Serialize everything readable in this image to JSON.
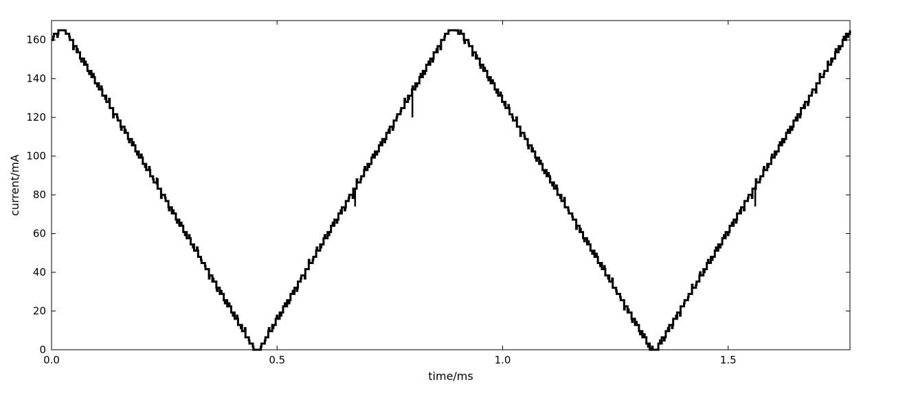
{
  "chart_data": {
    "type": "line",
    "title": "",
    "xlabel": "time/ms",
    "ylabel": "current/mA",
    "xlim": [
      0.0,
      1.77
    ],
    "ylim": [
      0,
      170
    ],
    "x_ticks": [
      0.0,
      0.5,
      1.0,
      1.5
    ],
    "x_tick_labels": [
      "0.0",
      "0.5",
      "1.0",
      "1.5"
    ],
    "y_ticks": [
      0,
      20,
      40,
      60,
      80,
      100,
      120,
      140,
      160
    ],
    "y_tick_labels": [
      "0",
      "20",
      "40",
      "60",
      "80",
      "100",
      "120",
      "140",
      "160"
    ],
    "grid": false,
    "line_color": "#000000",
    "series": [
      {
        "x": [
          0.0,
          0.015,
          0.03,
          0.45,
          0.46,
          0.88,
          0.9,
          0.92,
          1.33,
          1.34,
          1.77
        ],
        "y": [
          160,
          165,
          165,
          0,
          0,
          165,
          165,
          160,
          0,
          0,
          165
        ],
        "staircase_step_mA": 3.2,
        "glitches": [
          {
            "x": 0.233,
            "y": 89
          },
          {
            "x": 0.673,
            "y": 74
          },
          {
            "x": 0.8,
            "y": 120
          },
          {
            "x": 1.106,
            "y": 89
          },
          {
            "x": 1.56,
            "y": 74
          }
        ]
      }
    ]
  }
}
